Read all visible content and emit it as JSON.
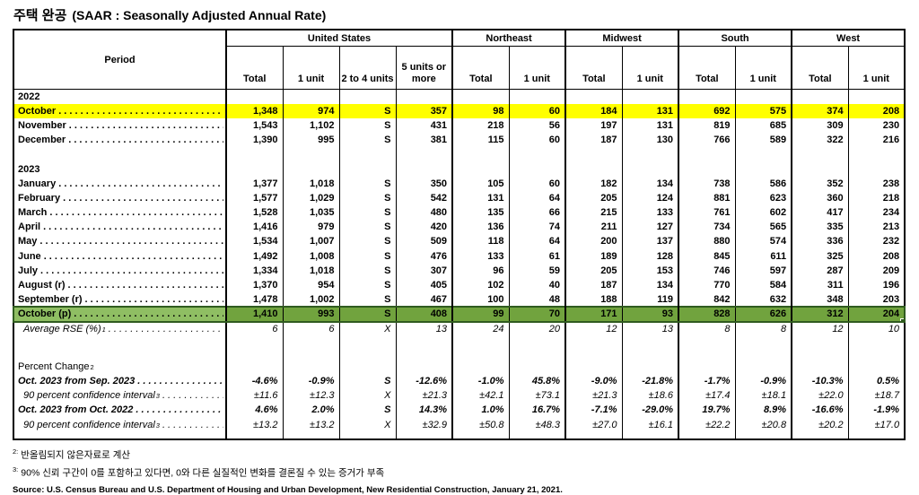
{
  "title": {
    "korean": "주택 완공",
    "latin": "(SAAR : Seasonally Adjusted Annual Rate)"
  },
  "colors": {
    "highlight_yellow": "#FFFF00",
    "highlight_green_label": "#8FBE63",
    "highlight_green_value": "#71A33E",
    "selection_border": "#2F5B1F"
  },
  "table": {
    "period_label": "Period",
    "groups": [
      {
        "label": "United States",
        "span": 4
      },
      {
        "label": "Northeast",
        "span": 2
      },
      {
        "label": "Midwest",
        "span": 2
      },
      {
        "label": "South",
        "span": 2
      },
      {
        "label": "West",
        "span": 2
      }
    ],
    "columns": [
      "Total",
      "1 unit",
      "2 to 4 units",
      "5 units or more",
      "Total",
      "1 unit",
      "Total",
      "1 unit",
      "Total",
      "1 unit",
      "Total",
      "1 unit"
    ],
    "rows": [
      {
        "style": "year",
        "label": "2022"
      },
      {
        "style": "month",
        "leader": true,
        "label": "October",
        "highlight": "yellow",
        "values": [
          "1,348",
          "974",
          "S",
          "357",
          "98",
          "60",
          "184",
          "131",
          "692",
          "575",
          "374",
          "208"
        ]
      },
      {
        "style": "month",
        "leader": true,
        "label": "November",
        "values": [
          "1,543",
          "1,102",
          "S",
          "431",
          "218",
          "56",
          "197",
          "131",
          "819",
          "685",
          "309",
          "230"
        ]
      },
      {
        "style": "month",
        "leader": true,
        "label": "December",
        "values": [
          "1,390",
          "995",
          "S",
          "381",
          "115",
          "60",
          "187",
          "130",
          "766",
          "589",
          "322",
          "216"
        ]
      },
      {
        "style": "blank"
      },
      {
        "style": "year",
        "label": "2023"
      },
      {
        "style": "month",
        "leader": true,
        "label": "January",
        "values": [
          "1,377",
          "1,018",
          "S",
          "350",
          "105",
          "60",
          "182",
          "134",
          "738",
          "586",
          "352",
          "238"
        ]
      },
      {
        "style": "month",
        "leader": true,
        "label": "February",
        "values": [
          "1,577",
          "1,029",
          "S",
          "542",
          "131",
          "64",
          "205",
          "124",
          "881",
          "623",
          "360",
          "218"
        ]
      },
      {
        "style": "month",
        "leader": true,
        "label": "March",
        "values": [
          "1,528",
          "1,035",
          "S",
          "480",
          "135",
          "66",
          "215",
          "133",
          "761",
          "602",
          "417",
          "234"
        ]
      },
      {
        "style": "month",
        "leader": true,
        "label": "April",
        "values": [
          "1,416",
          "979",
          "S",
          "420",
          "136",
          "74",
          "211",
          "127",
          "734",
          "565",
          "335",
          "213"
        ]
      },
      {
        "style": "month",
        "leader": true,
        "label": "May",
        "values": [
          "1,534",
          "1,007",
          "S",
          "509",
          "118",
          "64",
          "200",
          "137",
          "880",
          "574",
          "336",
          "232"
        ]
      },
      {
        "style": "month",
        "leader": true,
        "label": "June",
        "values": [
          "1,492",
          "1,008",
          "S",
          "476",
          "133",
          "61",
          "189",
          "128",
          "845",
          "611",
          "325",
          "208"
        ]
      },
      {
        "style": "month",
        "leader": true,
        "label": "July",
        "values": [
          "1,334",
          "1,018",
          "S",
          "307",
          "96",
          "59",
          "205",
          "153",
          "746",
          "597",
          "287",
          "209"
        ]
      },
      {
        "style": "month",
        "leader": true,
        "label": "August (r)",
        "values": [
          "1,370",
          "954",
          "S",
          "405",
          "102",
          "40",
          "187",
          "134",
          "770",
          "584",
          "311",
          "196"
        ]
      },
      {
        "style": "month",
        "leader": true,
        "label": "September (r)",
        "values": [
          "1,478",
          "1,002",
          "S",
          "467",
          "100",
          "48",
          "188",
          "119",
          "842",
          "632",
          "348",
          "203"
        ]
      },
      {
        "style": "month",
        "leader": true,
        "label": "October (p)",
        "highlight": "green",
        "values": [
          "1,410",
          "993",
          "S",
          "408",
          "99",
          "70",
          "171",
          "93",
          "828",
          "626",
          "312",
          "204"
        ]
      },
      {
        "style": "rse",
        "leader": true,
        "label": "Average RSE (%)",
        "sup": "1",
        "values": [
          "6",
          "6",
          "X",
          "13",
          "24",
          "20",
          "12",
          "13",
          "8",
          "8",
          "12",
          "10"
        ]
      },
      {
        "style": "blank",
        "tall": true
      },
      {
        "style": "section",
        "label": "Percent Change",
        "sup": "2"
      },
      {
        "style": "pct",
        "leader": true,
        "label": "Oct. 2023 from Sep. 2023",
        "values": [
          "-4.6%",
          "-0.9%",
          "S",
          "-12.6%",
          "-1.0%",
          "45.8%",
          "-9.0%",
          "-21.8%",
          "-1.7%",
          "-0.9%",
          "-10.3%",
          "0.5%"
        ]
      },
      {
        "style": "ci",
        "leader": true,
        "label": "90 percent confidence interval",
        "sup": "3",
        "values": [
          "±11.6",
          "±12.3",
          "X",
          "±21.3",
          "±42.1",
          "±73.1",
          "±21.3",
          "±18.6",
          "±17.4",
          "±18.1",
          "±22.0",
          "±18.7"
        ]
      },
      {
        "style": "pct",
        "leader": true,
        "label": "Oct. 2023 from Oct. 2022",
        "values": [
          "4.6%",
          "2.0%",
          "S",
          "14.3%",
          "1.0%",
          "16.7%",
          "-7.1%",
          "-29.0%",
          "19.7%",
          "8.9%",
          "-16.6%",
          "-1.9%"
        ]
      },
      {
        "style": "ci",
        "leader": true,
        "label": "90 percent confidence interval",
        "sup": "3",
        "values": [
          "±13.2",
          "±13.2",
          "X",
          "±32.9",
          "±50.8",
          "±48.3",
          "±27.0",
          "±16.1",
          "±22.2",
          "±20.8",
          "±20.2",
          "±17.0"
        ]
      },
      {
        "style": "pad"
      }
    ]
  },
  "footnotes": [
    {
      "marker": "2:",
      "text": "반올림되지 않은자료로 계산"
    },
    {
      "marker": "3:",
      "text": "90% 신뢰 구간이 0를 포함하고 있다면, 0와 다른 실질적인 변화를 결론질 수 있는 증거가 부족"
    }
  ],
  "source": "Source: U.S. Census Bureau and U.S. Department of Housing and Urban Development, New Residential Construction, January 21, 2021."
}
